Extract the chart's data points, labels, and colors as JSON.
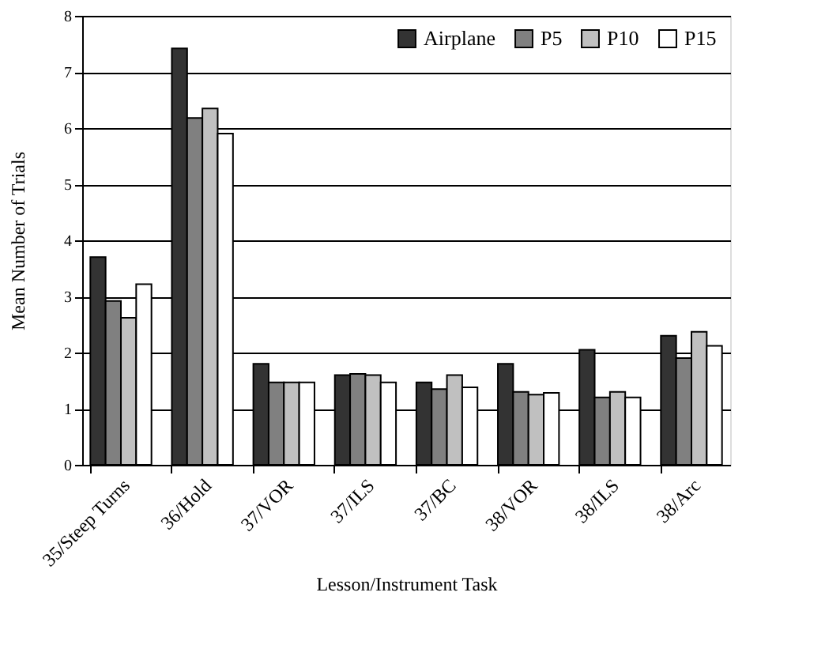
{
  "chart_data": {
    "type": "bar",
    "xlabel": "Lesson/Instrument Task",
    "ylabel": "Mean Number of Trials",
    "categories": [
      "35/Steep Turns",
      "36/Hold",
      "37/VOR",
      "37/ILS",
      "37/BC",
      "38/VOR",
      "38/ILS",
      "38/Arc"
    ],
    "series": [
      {
        "name": "Airplane",
        "color": "#333333",
        "values": [
          3.7,
          7.42,
          1.8,
          1.6,
          1.47,
          1.8,
          2.05,
          2.3
        ]
      },
      {
        "name": "P5",
        "color": "#808080",
        "values": [
          2.92,
          6.18,
          1.47,
          1.62,
          1.35,
          1.3,
          1.2,
          1.9
        ]
      },
      {
        "name": "P10",
        "color": "#c0c0c0",
        "values": [
          2.62,
          6.35,
          1.47,
          1.6,
          1.6,
          1.25,
          1.3,
          2.37
        ]
      },
      {
        "name": "P15",
        "color": "#ffffff",
        "values": [
          3.22,
          5.9,
          1.47,
          1.47,
          1.38,
          1.28,
          1.2,
          2.12
        ]
      }
    ],
    "ylim": [
      0,
      8
    ],
    "yticks": [
      0,
      1,
      2,
      3,
      4,
      5,
      6,
      7,
      8
    ],
    "grid": "y",
    "legend": "top right"
  }
}
